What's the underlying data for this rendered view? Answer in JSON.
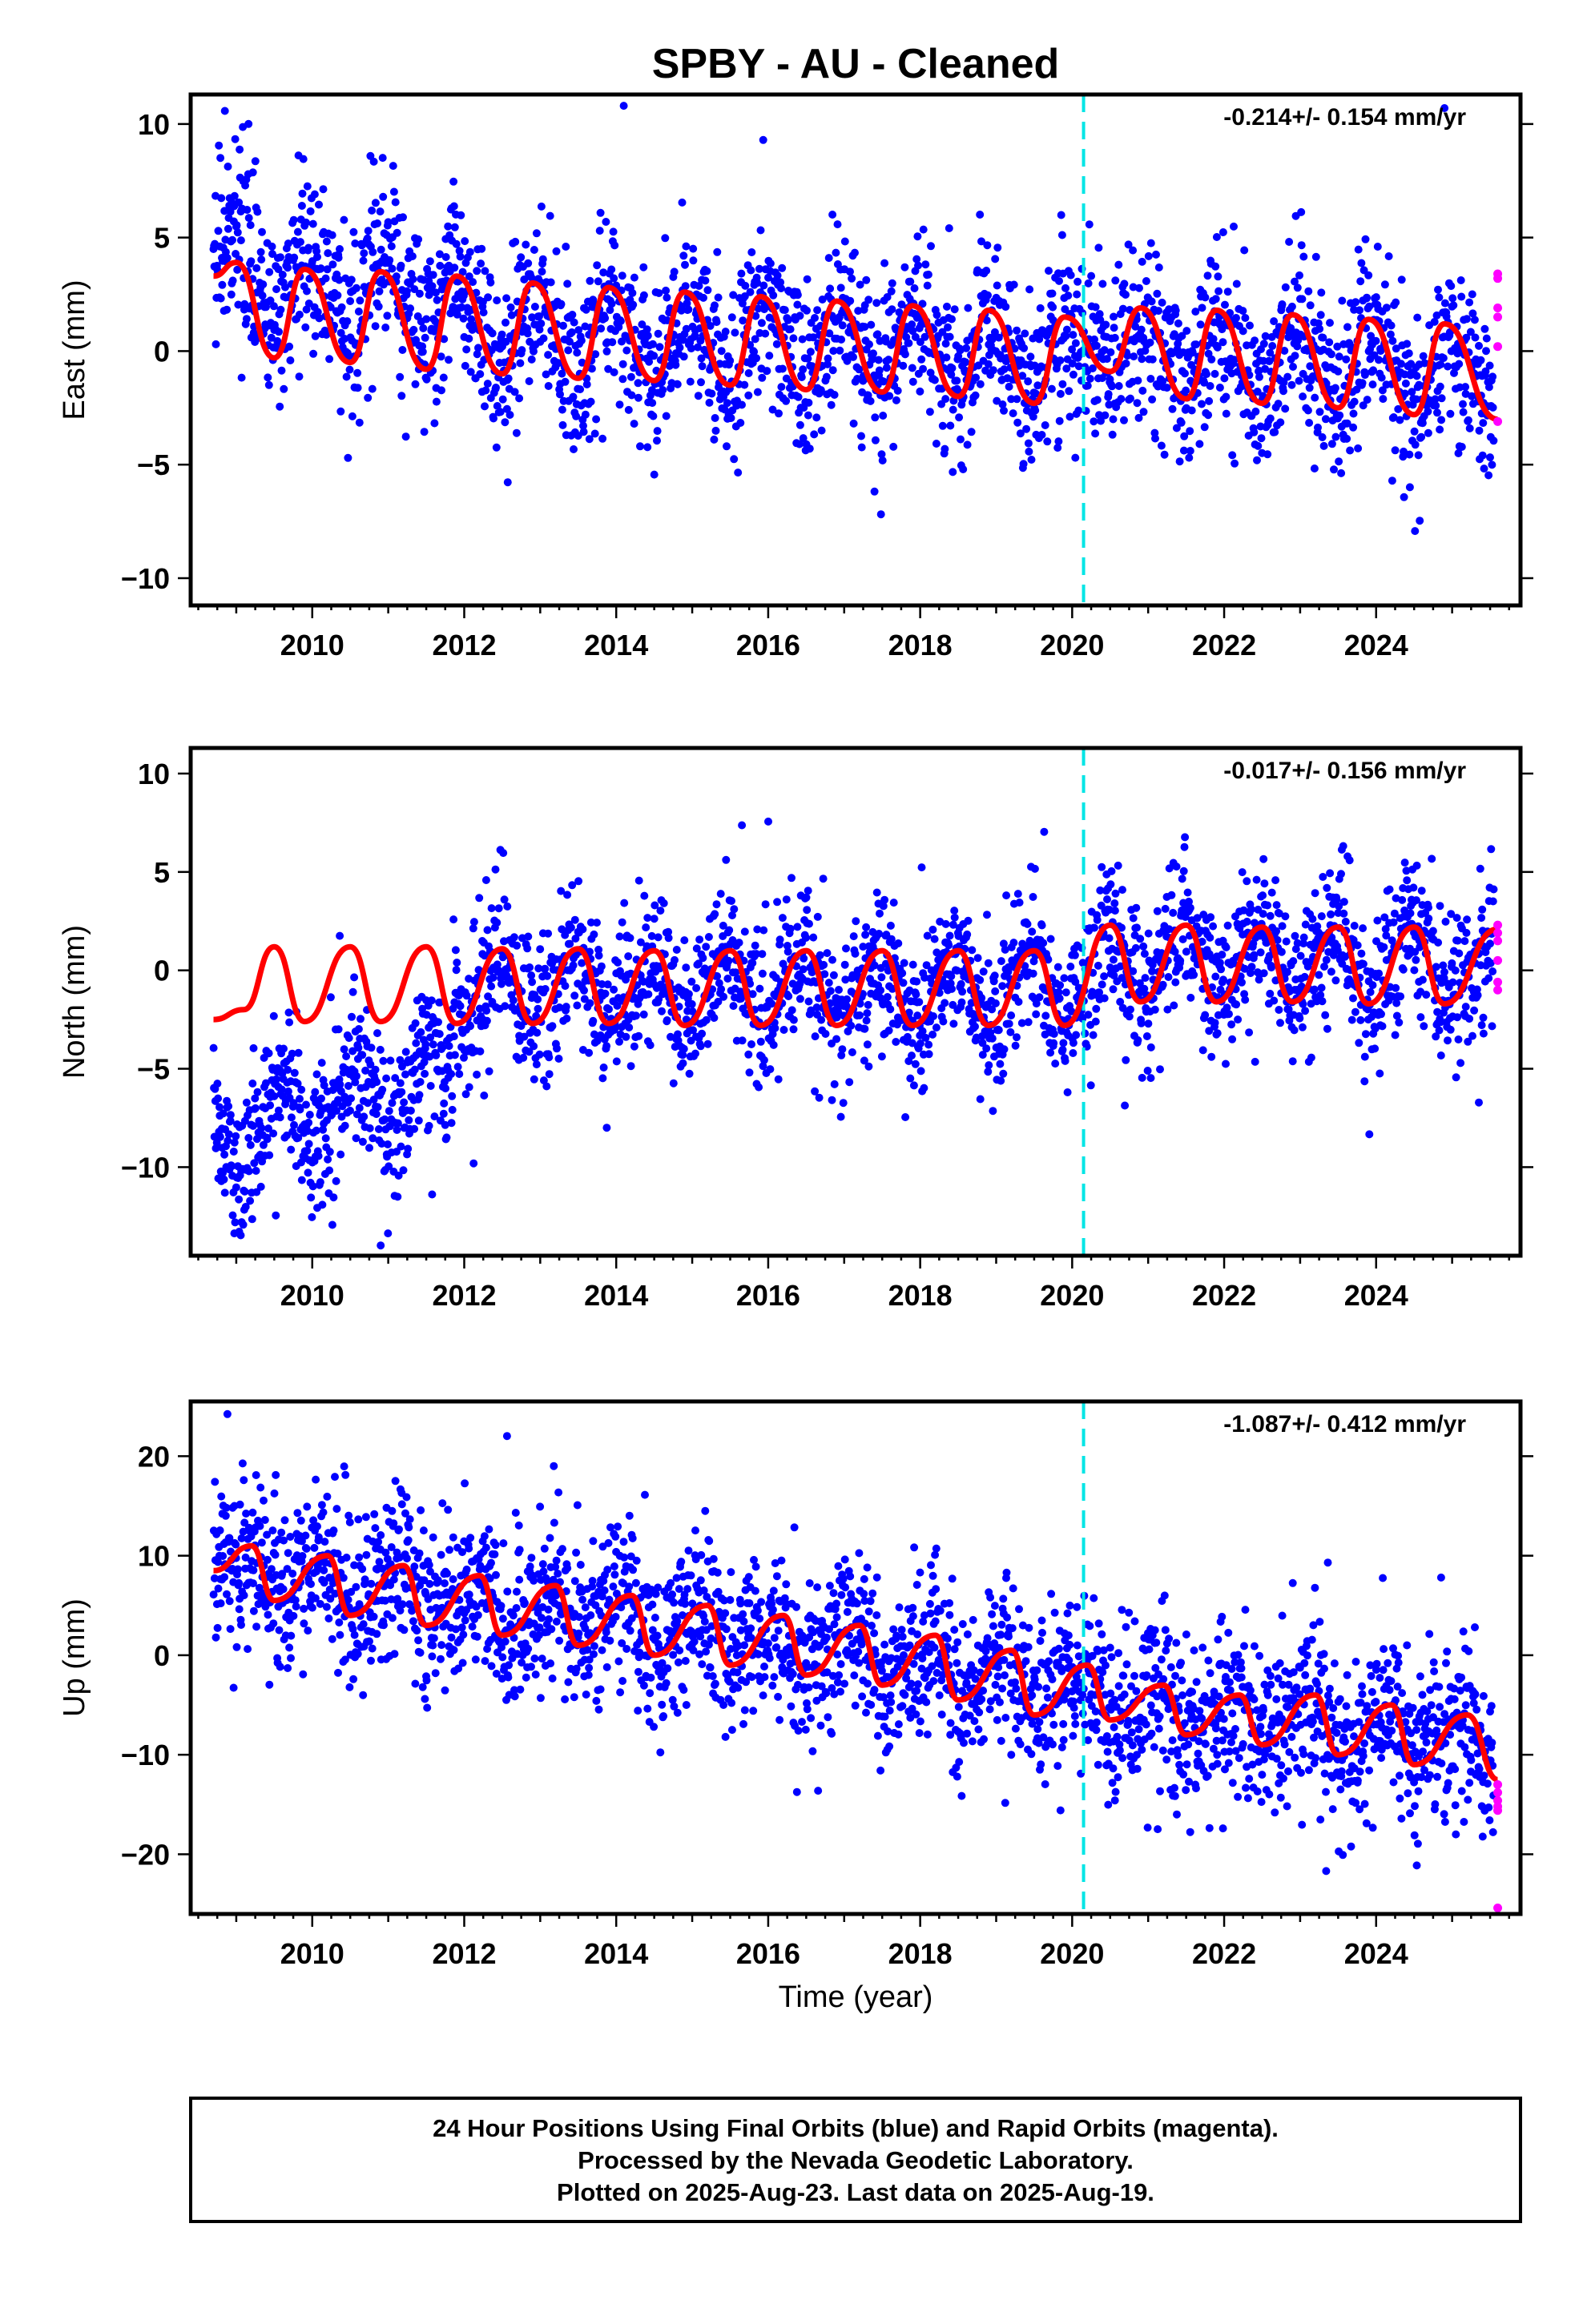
{
  "title": "SPBY  - AU - Cleaned",
  "xlabel": "Time (year)",
  "caption": [
    "24 Hour Positions Using Final Orbits (blue) and Rapid Orbits (magenta).",
    "Processed by the Nevada Geodetic Laboratory.",
    "Plotted on 2025-Aug-23. Last data on 2025-Aug-19."
  ],
  "colors": {
    "final_orbits": "#0000ff",
    "rapid_orbits": "#ff00ff",
    "model_fit": "#ff0000",
    "reference_line": "#00e5e5"
  },
  "chart_data": [
    {
      "type": "scatter",
      "ylabel": "East (mm)",
      "rate_label": "-0.214+/- 0.154 mm/yr",
      "xlim": [
        2008.4,
        2025.9
      ],
      "ylim": [
        -11.2,
        11.3
      ],
      "xticks": [
        2010,
        2012,
        2014,
        2016,
        2018,
        2020,
        2022,
        2024
      ],
      "yticks": [
        -10,
        -5,
        0,
        5,
        10
      ],
      "ytick_labels": [
        "−10",
        "−5",
        "0",
        "5",
        "10"
      ],
      "grid": false,
      "reference_line_x": 2020.15,
      "data_start": 2008.7,
      "data_end": 2025.63,
      "rapid_start": 2025.55,
      "model_fit": {
        "name": "model fit",
        "x": [
          2008.7,
          2009.0,
          2009.5,
          2009.9,
          2010.5,
          2010.9,
          2011.5,
          2011.9,
          2012.5,
          2012.9,
          2013.5,
          2013.9,
          2014.5,
          2014.9,
          2015.5,
          2015.9,
          2016.5,
          2016.9,
          2017.5,
          2017.9,
          2018.5,
          2018.9,
          2019.5,
          2019.9,
          2020.5,
          2020.9,
          2021.5,
          2021.9,
          2022.5,
          2022.9,
          2023.5,
          2023.9,
          2024.5,
          2024.9,
          2025.6
        ],
        "y": [
          3.3,
          3.9,
          -0.3,
          3.6,
          -0.5,
          3.5,
          -0.8,
          3.3,
          -1.0,
          3.0,
          -1.2,
          2.8,
          -1.3,
          2.6,
          -1.5,
          2.4,
          -1.7,
          2.2,
          -1.8,
          2.0,
          -2.0,
          1.8,
          -2.3,
          1.5,
          -0.9,
          1.9,
          -2.1,
          1.8,
          -2.3,
          1.6,
          -2.5,
          1.4,
          -2.8,
          1.2,
          -3.0
        ]
      },
      "rapid_points": {
        "x": [
          2025.6,
          2025.6,
          2025.6,
          2025.6,
          2025.6,
          2025.6
        ],
        "y": [
          3.4,
          3.2,
          1.9,
          1.5,
          0.2,
          -3.1
        ]
      }
    },
    {
      "type": "scatter",
      "ylabel": "North (mm)",
      "rate_label": "-0.017+/- 0.156 mm/yr",
      "xlim": [
        2008.4,
        2025.9
      ],
      "ylim": [
        -14.5,
        11.3
      ],
      "xticks": [
        2010,
        2012,
        2014,
        2016,
        2018,
        2020,
        2022,
        2024
      ],
      "yticks": [
        -10,
        -5,
        0,
        5,
        10
      ],
      "ytick_labels": [
        "−10",
        "−5",
        "0",
        "5",
        "10"
      ],
      "grid": false,
      "reference_line_x": 2020.15,
      "data_start": 2008.7,
      "data_end": 2025.63,
      "rapid_start": 2025.55,
      "model_fit": {
        "name": "model fit",
        "x": [
          2008.7,
          2009.1,
          2009.5,
          2009.9,
          2010.5,
          2010.9,
          2011.5,
          2011.9,
          2012.5,
          2012.9,
          2013.5,
          2013.9,
          2014.5,
          2014.9,
          2015.5,
          2015.9,
          2016.5,
          2016.9,
          2017.5,
          2017.9,
          2018.5,
          2018.9,
          2019.5,
          2019.9,
          2020.5,
          2020.9,
          2021.5,
          2021.9,
          2022.5,
          2022.9,
          2023.5,
          2023.9,
          2024.5,
          2024.9,
          2025.6
        ],
        "y": [
          -2.5,
          -2.0,
          1.2,
          -2.6,
          1.2,
          -2.6,
          1.2,
          -2.7,
          1.1,
          -2.7,
          1.1,
          -2.7,
          1.0,
          -2.8,
          1.0,
          -2.8,
          1.0,
          -2.8,
          1.0,
          -2.8,
          1.0,
          -2.8,
          1.0,
          -2.8,
          2.3,
          -1.6,
          2.3,
          -1.6,
          2.2,
          -1.6,
          2.2,
          -1.7,
          2.2,
          -1.7,
          2.1
        ]
      },
      "rapid_points": {
        "x": [
          2025.6,
          2025.6,
          2025.6,
          2025.6,
          2025.6,
          2025.6
        ],
        "y": [
          2.3,
          1.9,
          1.5,
          0.5,
          -0.6,
          -1.0
        ]
      }
    },
    {
      "type": "scatter",
      "ylabel": "Up (mm)",
      "rate_label": "-1.087+/- 0.412 mm/yr",
      "xlim": [
        2008.4,
        2025.9
      ],
      "ylim": [
        -26.0,
        25.5
      ],
      "xticks": [
        2010,
        2012,
        2014,
        2016,
        2018,
        2020,
        2022,
        2024
      ],
      "yticks": [
        -20,
        -10,
        0,
        10,
        20
      ],
      "ytick_labels": [
        "−20",
        "−10",
        "0",
        "10",
        "20"
      ],
      "grid": false,
      "reference_line_x": 2020.15,
      "data_start": 2008.7,
      "data_end": 2025.63,
      "rapid_start": 2025.55,
      "model_fit": {
        "name": "model fit",
        "x": [
          2008.7,
          2009.2,
          2009.5,
          2010.2,
          2010.5,
          2011.2,
          2011.5,
          2012.2,
          2012.5,
          2013.2,
          2013.5,
          2014.2,
          2014.5,
          2015.2,
          2015.5,
          2016.2,
          2016.5,
          2017.2,
          2017.5,
          2018.2,
          2018.5,
          2019.2,
          2019.5,
          2020.2,
          2020.5,
          2021.2,
          2021.5,
          2022.2,
          2022.5,
          2023.2,
          2023.5,
          2024.2,
          2024.5,
          2025.2,
          2025.6
        ],
        "y": [
          8.5,
          11.0,
          5.5,
          10.0,
          4.0,
          9.0,
          3.0,
          8.0,
          2.0,
          7.0,
          1.0,
          6.0,
          0.0,
          5.0,
          -1.0,
          4.0,
          -2.0,
          3.0,
          -3.0,
          2.0,
          -4.5,
          0.5,
          -6.0,
          -1.0,
          -6.5,
          -3.0,
          -8.0,
          -4.0,
          -9.0,
          -4.0,
          -10.0,
          -5.0,
          -11.0,
          -6.0,
          -12.5
        ]
      },
      "rapid_points": {
        "x": [
          2025.6,
          2025.6,
          2025.6,
          2025.6,
          2025.6,
          2025.6
        ],
        "y": [
          -13.0,
          -13.8,
          -14.6,
          -15.2,
          -15.6,
          -25.4
        ]
      }
    }
  ]
}
